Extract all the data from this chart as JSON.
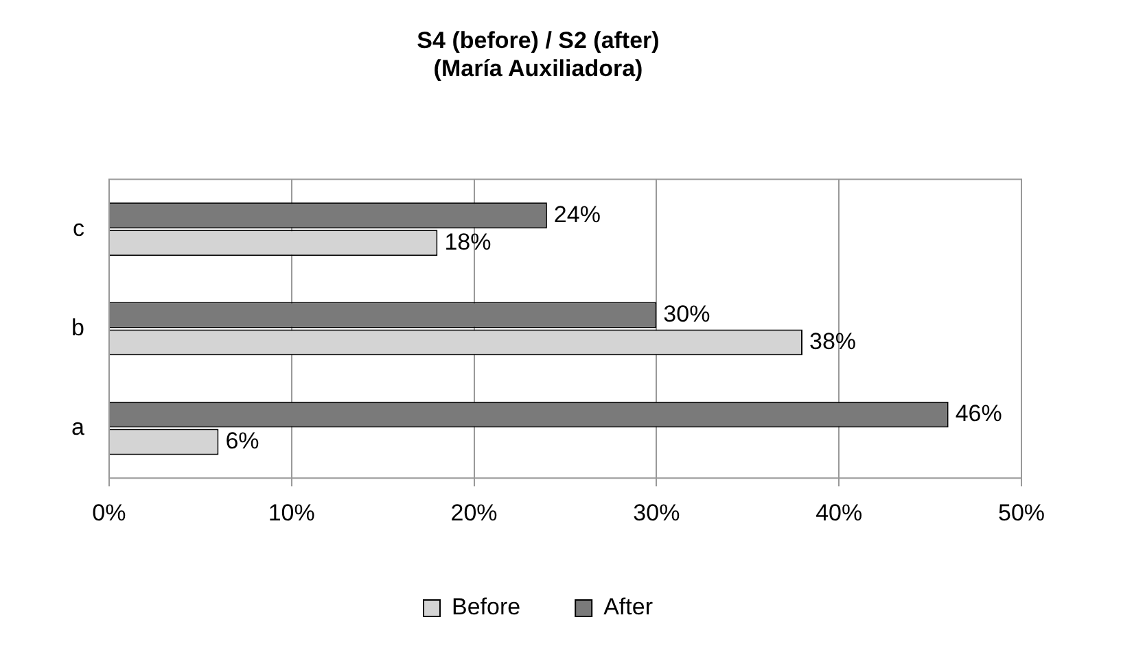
{
  "chart_data": {
    "type": "bar",
    "orientation": "horizontal",
    "title": "S4 (before) / S2 (after)\n(María Auxiliadora)",
    "categories": [
      "c",
      "b",
      "a"
    ],
    "series": [
      {
        "name": "Before",
        "color": "#d4d4d4",
        "values": [
          18,
          38,
          6
        ],
        "value_labels": [
          "18%",
          "38%",
          "6%"
        ]
      },
      {
        "name": "After",
        "color": "#7a7a7a",
        "values": [
          24,
          30,
          46
        ],
        "value_labels": [
          "24%",
          "30%",
          "46%"
        ]
      }
    ],
    "xlim": [
      0,
      50
    ],
    "xticks": [
      {
        "value": 0,
        "label": "0%"
      },
      {
        "value": 10,
        "label": "10%"
      },
      {
        "value": 20,
        "label": "20%"
      },
      {
        "value": 30,
        "label": "30%"
      },
      {
        "value": 40,
        "label": "40%"
      },
      {
        "value": 50,
        "label": "50%"
      }
    ],
    "grid": "x",
    "legend": "bottom"
  }
}
